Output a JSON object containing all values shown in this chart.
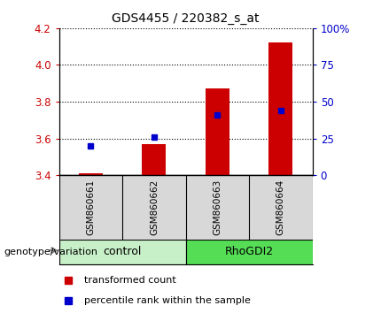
{
  "title": "GDS4455 / 220382_s_at",
  "samples": [
    "GSM860661",
    "GSM860662",
    "GSM860663",
    "GSM860664"
  ],
  "groups": [
    "control",
    "control",
    "RhoGDI2",
    "RhoGDI2"
  ],
  "group_colors": {
    "control": "#c8f0c8",
    "RhoGDI2": "#55dd55"
  },
  "red_values": [
    3.41,
    3.57,
    3.87,
    4.12
  ],
  "blue_values_pct": [
    20,
    26,
    41,
    44
  ],
  "ylim_left": [
    3.4,
    4.2
  ],
  "ylim_right": [
    0,
    100
  ],
  "y_ticks_left": [
    3.4,
    3.6,
    3.8,
    4.0,
    4.2
  ],
  "y_ticks_right": [
    0,
    25,
    50,
    75,
    100
  ],
  "y_tick_right_labels": [
    "0",
    "25",
    "50",
    "75",
    "100%"
  ],
  "bar_color": "#cc0000",
  "dot_color": "#0000cc",
  "bar_bottom": 3.4,
  "bar_width": 0.38,
  "legend_red": "transformed count",
  "legend_blue": "percentile rank within the sample",
  "label_genotype": "genotype/variation"
}
